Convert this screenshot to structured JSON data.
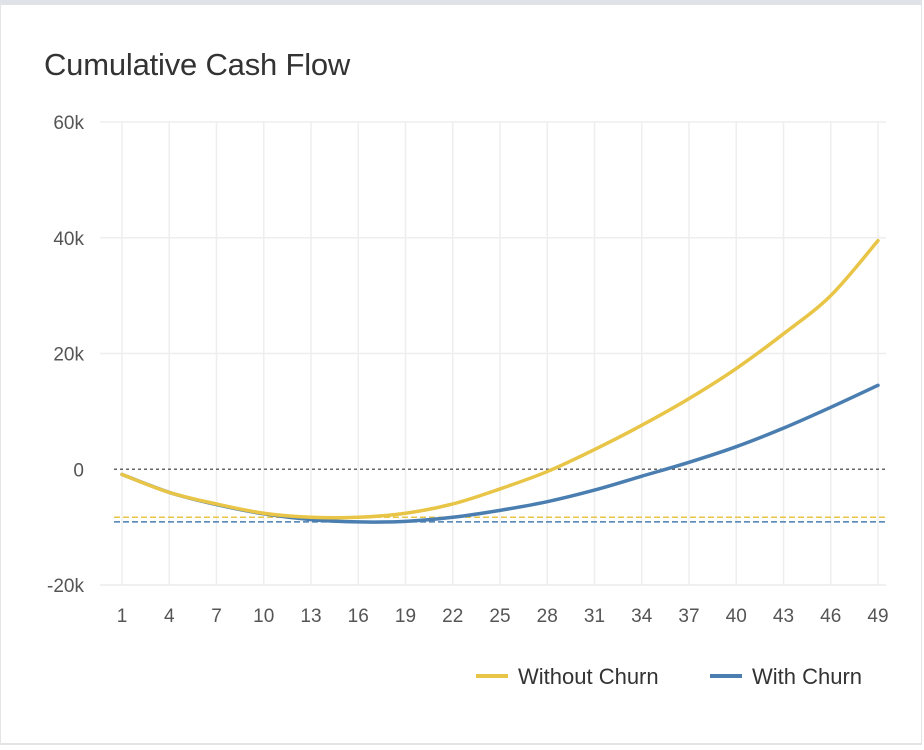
{
  "title": "Cumulative Cash Flow",
  "colors": {
    "without_churn": "#e8c547",
    "with_churn": "#4a7eb0",
    "zero_line": "#666666",
    "grid": "#eeeeee"
  },
  "chart_data": {
    "type": "line",
    "title": "Cumulative Cash Flow",
    "xlabel": "",
    "ylabel": "",
    "x_ticks": [
      1,
      4,
      7,
      10,
      13,
      16,
      19,
      22,
      25,
      28,
      31,
      34,
      37,
      40,
      43,
      46,
      49
    ],
    "y_ticks": [
      -20000,
      0,
      20000,
      40000,
      60000
    ],
    "y_tick_labels": [
      "-20k",
      "0",
      "20k",
      "40k",
      "60k"
    ],
    "xlim": [
      1,
      49
    ],
    "ylim": [
      -20000,
      60000
    ],
    "grid": true,
    "legend_placement": "bottom-right",
    "series": [
      {
        "name": "Without Churn",
        "x": [
          1,
          4,
          7,
          10,
          13,
          16,
          19,
          22,
          25,
          28,
          31,
          34,
          37,
          40,
          43,
          46,
          49
        ],
        "values": [
          -900,
          -4000,
          -6000,
          -7600,
          -8300,
          -8300,
          -7600,
          -6000,
          -3400,
          -400,
          3400,
          7600,
          12200,
          17400,
          23400,
          30000,
          39500
        ]
      },
      {
        "name": "With Churn",
        "x": [
          1,
          4,
          7,
          10,
          13,
          16,
          19,
          22,
          25,
          28,
          31,
          34,
          37,
          40,
          43,
          46,
          49
        ],
        "values": [
          -900,
          -4000,
          -6100,
          -7700,
          -8700,
          -9100,
          -9000,
          -8300,
          -7100,
          -5600,
          -3600,
          -1200,
          1200,
          3900,
          7100,
          10700,
          14500
        ]
      }
    ],
    "reference_lines": [
      {
        "value": -8300,
        "series": "Without Churn",
        "style": "dashed"
      },
      {
        "value": -9100,
        "series": "With Churn",
        "style": "dashed"
      },
      {
        "value": 0,
        "style": "dotted"
      }
    ]
  }
}
